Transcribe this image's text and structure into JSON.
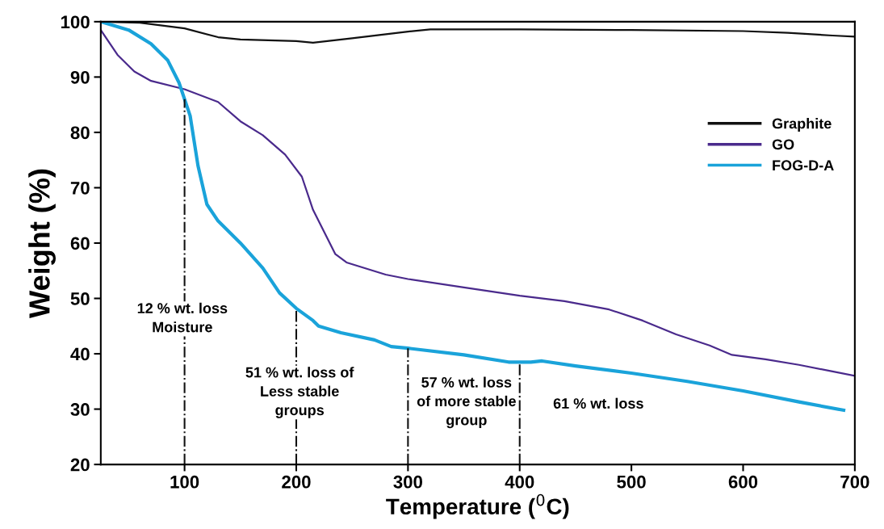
{
  "chart_data": {
    "type": "line",
    "xlabel": "Temperature ($^{0}$C)",
    "ylabel": "Weight (%)",
    "xlim": [
      25,
      700
    ],
    "ylim": [
      20,
      100
    ],
    "xticks": [
      100,
      200,
      300,
      400,
      500,
      600,
      700
    ],
    "yticks": [
      20,
      30,
      40,
      50,
      60,
      70,
      80,
      90,
      100
    ],
    "grid": false,
    "legend": "right",
    "line_style": "solid",
    "marker": "none",
    "series": [
      {
        "name": "Graphite",
        "color": "#111111",
        "x": [
          25,
          60,
          100,
          130,
          150,
          200,
          215,
          250,
          300,
          320,
          400,
          500,
          600,
          640,
          680,
          700
        ],
        "values": [
          100,
          99.8,
          98.8,
          97.2,
          96.8,
          96.5,
          96.2,
          97,
          98.2,
          98.6,
          98.6,
          98.5,
          98.3,
          98,
          97.5,
          97.3
        ]
      },
      {
        "name": "GO",
        "color": "#4a2a8c",
        "x": [
          25,
          40,
          55,
          70,
          100,
          130,
          150,
          170,
          190,
          205,
          215,
          225,
          235,
          245,
          280,
          300,
          350,
          400,
          440,
          480,
          510,
          540,
          570,
          590,
          620,
          650,
          680,
          700
        ],
        "values": [
          98.5,
          94,
          91,
          89.3,
          87.8,
          85.5,
          82,
          79.5,
          76,
          72,
          66,
          62,
          58,
          56.5,
          54.3,
          53.5,
          52,
          50.5,
          49.5,
          48,
          46,
          43.5,
          41.5,
          39.8,
          39,
          38,
          36.8,
          36
        ]
      },
      {
        "name": "FOG-D-A",
        "color": "#1aa3da",
        "x": [
          25,
          50,
          70,
          85,
          95,
          105,
          112,
          120,
          130,
          150,
          170,
          185,
          200,
          215,
          220,
          240,
          270,
          285,
          300,
          350,
          390,
          410,
          420,
          450,
          500,
          550,
          600,
          650,
          690
        ],
        "values": [
          100,
          98.5,
          96,
          93,
          89,
          83,
          74,
          67,
          64,
          60,
          55.5,
          51,
          48.2,
          46,
          45,
          43.8,
          42.5,
          41.3,
          41,
          39.8,
          38.5,
          38.5,
          38.7,
          37.8,
          36.5,
          35,
          33.3,
          31.3,
          29.8
        ]
      }
    ],
    "ref_lines": [
      {
        "axis": "x",
        "value": 100,
        "line_style": "dashdot",
        "color": "#111111"
      },
      {
        "axis": "x",
        "value": 200,
        "line_style": "dashdot",
        "color": "#111111"
      },
      {
        "axis": "x",
        "value": 300,
        "line_style": "dashdot",
        "color": "#111111"
      },
      {
        "axis": "x",
        "value": 400,
        "line_style": "dashdot",
        "color": "#111111"
      }
    ],
    "annotations": [
      {
        "text": "12 % wt. loss\nMoisture",
        "x": 98,
        "y": 46.3
      },
      {
        "text": "51 % wt. loss of\nLess stable\ngroups",
        "x": 203,
        "y": 33
      },
      "57 % wt. loss\nof more stable\ngroup",
      "61 % wt. loss"
    ]
  }
}
